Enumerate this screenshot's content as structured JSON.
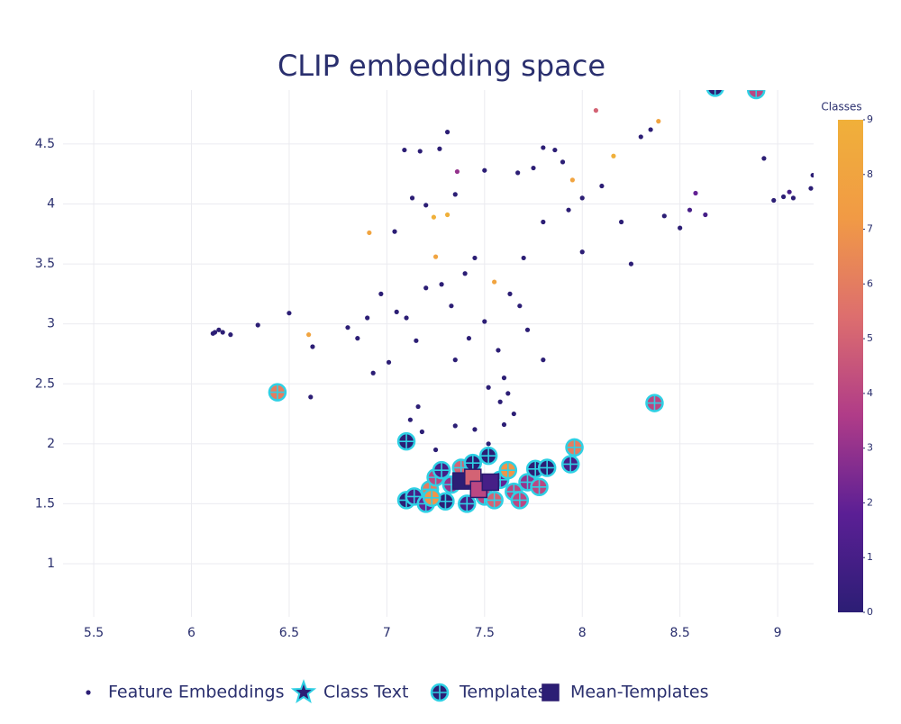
{
  "chart_data": {
    "type": "scatter",
    "title": "CLIP embedding space",
    "xlim": [
      5.343,
      9.184
    ],
    "ylim": [
      0.557,
      4.95
    ],
    "xticks": [
      5.5,
      6,
      6.5,
      7,
      7.5,
      8,
      8.5,
      9
    ],
    "yticks": [
      1,
      1.5,
      2,
      2.5,
      3,
      3.5,
      4,
      4.5
    ],
    "grid": true,
    "colorbar": {
      "title": "Classes",
      "lim": [
        0,
        9
      ],
      "ticks": [
        0,
        1,
        2,
        3,
        4,
        5,
        6,
        7,
        8,
        9
      ]
    },
    "series": [
      {
        "name": "Feature Embeddings",
        "marker": "dot",
        "x": [
          6.12,
          6.14,
          6.16,
          6.2,
          6.11,
          6.34,
          6.5,
          6.62,
          6.61,
          6.6,
          6.91,
          7.09,
          7.17,
          7.31,
          7.27,
          7.13,
          7.04,
          7.2,
          7.24,
          7.31,
          7.36,
          7.35,
          6.9,
          6.8,
          6.85,
          6.93,
          6.97,
          7.01,
          7.05,
          7.1,
          7.15,
          7.16,
          7.2,
          7.25,
          7.28,
          7.33,
          7.35,
          7.4,
          7.42,
          7.45,
          7.5,
          7.52,
          7.55,
          7.57,
          7.58,
          7.6,
          7.62,
          7.65,
          7.52,
          7.35,
          7.25,
          7.18,
          7.12,
          7.45,
          7.6,
          7.68,
          7.7,
          7.75,
          7.8,
          7.86,
          7.9,
          7.93,
          7.95,
          8.0,
          8.07,
          8.1,
          8.16,
          8.2,
          8.25,
          8.3,
          8.35,
          8.39,
          8.42,
          8.5,
          8.55,
          8.58,
          8.63,
          8.93,
          8.98,
          9.03,
          9.06,
          9.08,
          9.17,
          9.18,
          7.8,
          7.5,
          7.8,
          7.67,
          7.63,
          7.72,
          8.0
        ],
        "y": [
          2.93,
          2.95,
          2.93,
          2.91,
          2.92,
          2.99,
          3.09,
          2.81,
          2.39,
          2.91,
          3.76,
          4.45,
          4.44,
          4.6,
          4.46,
          4.05,
          3.77,
          3.99,
          3.89,
          3.91,
          4.27,
          4.08,
          3.05,
          2.97,
          2.88,
          2.59,
          3.25,
          2.68,
          3.1,
          3.05,
          2.86,
          2.31,
          3.3,
          3.56,
          3.33,
          3.15,
          2.7,
          3.42,
          2.88,
          3.55,
          3.02,
          2.47,
          3.35,
          2.78,
          2.35,
          2.55,
          2.42,
          2.25,
          2.0,
          2.15,
          1.95,
          2.1,
          2.2,
          2.12,
          2.16,
          3.15,
          3.55,
          4.3,
          4.47,
          4.45,
          4.35,
          3.95,
          4.2,
          3.6,
          4.78,
          4.15,
          4.4,
          3.85,
          3.5,
          4.56,
          4.62,
          4.69,
          3.9,
          3.8,
          3.95,
          4.09,
          3.91,
          4.38,
          4.03,
          4.06,
          4.1,
          4.05,
          4.13,
          4.24,
          2.7,
          4.28,
          3.85,
          4.26,
          3.25,
          2.95,
          4.05
        ],
        "classes": [
          0,
          0,
          0,
          0,
          0,
          0,
          0,
          0,
          0,
          8,
          8,
          0,
          0,
          0,
          0,
          0,
          0,
          0,
          9,
          9,
          3,
          0,
          0,
          0,
          0,
          0,
          0,
          0,
          0,
          0,
          0,
          0,
          0,
          8,
          0,
          0,
          0,
          0,
          0,
          0,
          0,
          0,
          8,
          0,
          0,
          0,
          0,
          0,
          0,
          0,
          0,
          0,
          0,
          0,
          0,
          0,
          0,
          0,
          0,
          0,
          0,
          0,
          8,
          0,
          5,
          0,
          9,
          0,
          0,
          0,
          0,
          8,
          0,
          0,
          1,
          2,
          1,
          0,
          0,
          0,
          1,
          0,
          0,
          0,
          0,
          0,
          0,
          0,
          0,
          0,
          0
        ]
      },
      {
        "name": "Class Text",
        "marker": "star",
        "x": [],
        "y": [],
        "classes": []
      },
      {
        "name": "Templates",
        "marker": "circle-cross",
        "x": [
          7.1,
          7.14,
          7.2,
          7.22,
          7.25,
          7.28,
          7.3,
          7.33,
          7.38,
          7.41,
          7.44,
          7.5,
          7.52,
          7.55,
          7.58,
          7.62,
          7.65,
          7.68,
          7.72,
          7.76,
          7.82,
          7.78,
          7.94,
          7.96,
          7.1,
          6.44,
          8.37,
          8.89,
          8.68,
          7.23
        ],
        "y": [
          1.53,
          1.56,
          1.5,
          1.62,
          1.72,
          1.78,
          1.52,
          1.66,
          1.8,
          1.5,
          1.84,
          1.56,
          1.9,
          1.53,
          1.7,
          1.78,
          1.6,
          1.53,
          1.68,
          1.79,
          1.8,
          1.64,
          1.83,
          1.97,
          2.02,
          2.43,
          2.34,
          4.95,
          4.97,
          1.55
        ],
        "classes": [
          0,
          1,
          2,
          6,
          4,
          1,
          0,
          3,
          5,
          1,
          0,
          4,
          0,
          5,
          2,
          7,
          4,
          4,
          3,
          0,
          0,
          4,
          1,
          6,
          0,
          6,
          4,
          4,
          0,
          7
        ]
      },
      {
        "name": "Mean-Templates",
        "marker": "square",
        "x": [
          7.38,
          7.44,
          7.47,
          7.53
        ],
        "y": [
          1.69,
          1.72,
          1.62,
          1.68
        ],
        "classes": [
          0,
          5,
          4,
          1
        ]
      }
    ]
  }
}
